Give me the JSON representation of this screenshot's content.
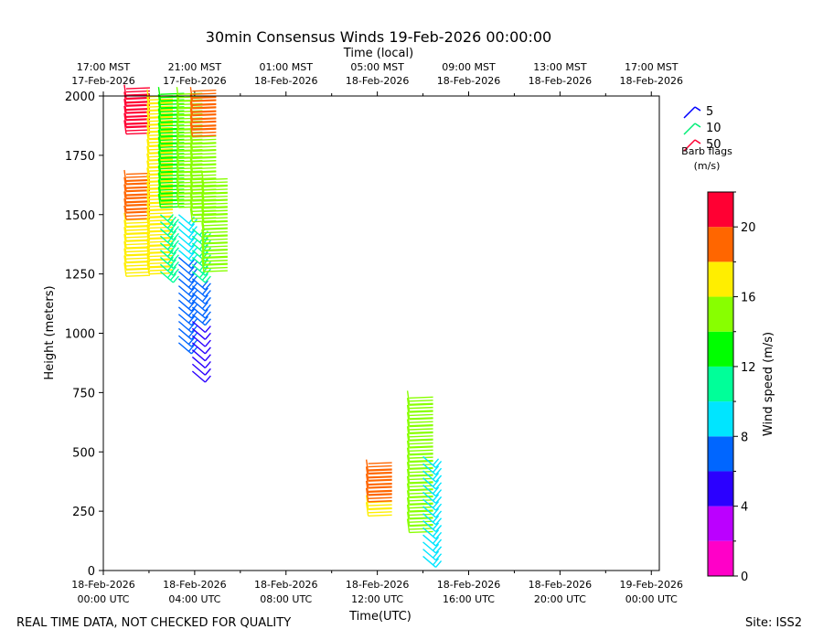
{
  "chart_data": {
    "type": "wind-barb-profile",
    "title": "30min Consensus Winds 19-Feb-2026 00:00:00",
    "top_axis_label": "Time (local)",
    "top_ticks": [
      {
        "hour": 0,
        "line1": "17:00 MST",
        "line2": "17-Feb-2026"
      },
      {
        "hour": 4,
        "line1": "21:00 MST",
        "line2": "17-Feb-2026"
      },
      {
        "hour": 8,
        "line1": "01:00 MST",
        "line2": "18-Feb-2026"
      },
      {
        "hour": 12,
        "line1": "05:00 MST",
        "line2": "18-Feb-2026"
      },
      {
        "hour": 16,
        "line1": "09:00 MST",
        "line2": "18-Feb-2026"
      },
      {
        "hour": 20,
        "line1": "13:00 MST",
        "line2": "18-Feb-2026"
      },
      {
        "hour": 24,
        "line1": "17:00 MST",
        "line2": "18-Feb-2026"
      }
    ],
    "xlabel": "Time(UTC)",
    "x_ticks": [
      {
        "hour": 0,
        "line1": "18-Feb-2026",
        "line2": "00:00 UTC"
      },
      {
        "hour": 4,
        "line1": "18-Feb-2026",
        "line2": "04:00 UTC"
      },
      {
        "hour": 8,
        "line1": "18-Feb-2026",
        "line2": "08:00 UTC"
      },
      {
        "hour": 12,
        "line1": "18-Feb-2026",
        "line2": "12:00 UTC"
      },
      {
        "hour": 16,
        "line1": "18-Feb-2026",
        "line2": "16:00 UTC"
      },
      {
        "hour": 20,
        "line1": "18-Feb-2026",
        "line2": "20:00 UTC"
      },
      {
        "hour": 24,
        "line1": "19-Feb-2026",
        "line2": "00:00 UTC"
      }
    ],
    "xlim": [
      0,
      24.35
    ],
    "ylabel": "Height (meters)",
    "ylim": [
      0,
      2000
    ],
    "y_ticks": [
      0,
      250,
      500,
      750,
      1000,
      1250,
      1500,
      1750,
      2000
    ],
    "barb_legend": {
      "entries": [
        {
          "value": "5",
          "color": "#0000ff"
        },
        {
          "value": "10",
          "color": "#00ee77"
        },
        {
          "value": "50",
          "color": "#ff0033"
        }
      ],
      "caption_line1": "Barb flags",
      "caption_line2": "(m/s)"
    },
    "colorbar": {
      "label": "Wind speed (m/s)",
      "min": 0,
      "max": 22,
      "ticks": [
        0,
        4,
        8,
        12,
        16,
        20
      ],
      "colors": [
        "#ff00c8",
        "#bb00ff",
        "#2b00ff",
        "#0066ff",
        "#00e5ff",
        "#00ff99",
        "#00ff00",
        "#88ff00",
        "#ffee00",
        "#ff6600",
        "#ff0033"
      ]
    },
    "series": [
      {
        "time_hour": 1.0,
        "start_height": 1240,
        "end_height": 1990,
        "step": 30,
        "segments": [
          {
            "from": 1240,
            "to": 1450,
            "speed": 16.8
          },
          {
            "from": 1450,
            "to": 1630,
            "speed": 18.5
          },
          {
            "from": 1830,
            "to": 1990,
            "speed": 21.0
          }
        ]
      },
      {
        "time_hour": 2.0,
        "start_height": 1250,
        "end_height": 1990,
        "step": 30,
        "segments": [
          {
            "from": 1250,
            "to": 1460,
            "speed": 16.0
          },
          {
            "from": 1460,
            "to": 1990,
            "speed": 17.0
          }
        ]
      },
      {
        "time_hour": 2.5,
        "start_height": 1260,
        "end_height": 1990,
        "step": 30,
        "segments": [
          {
            "from": 1260,
            "to": 1350,
            "speed": 11.0
          },
          {
            "from": 1350,
            "to": 1520,
            "speed": 10.5
          },
          {
            "from": 1520,
            "to": 1990,
            "speed": 13.5
          }
        ]
      },
      {
        "time_hour": 3.3,
        "start_height": 960,
        "end_height": 1990,
        "step": 30,
        "segments": [
          {
            "from": 960,
            "to": 1100,
            "speed": 6.8
          },
          {
            "from": 1100,
            "to": 1340,
            "speed": 7.5
          },
          {
            "from": 1340,
            "to": 1500,
            "speed": 9.0
          },
          {
            "from": 1500,
            "to": 1990,
            "speed": 14.5
          }
        ]
      },
      {
        "time_hour": 3.9,
        "start_height": 840,
        "end_height": 1990,
        "step": 30,
        "segments": [
          {
            "from": 840,
            "to": 1060,
            "speed": 5.0
          },
          {
            "from": 1060,
            "to": 1240,
            "speed": 7.0
          },
          {
            "from": 1240,
            "to": 1450,
            "speed": 11.0
          },
          {
            "from": 1450,
            "to": 1820,
            "speed": 15.0
          },
          {
            "from": 1820,
            "to": 1990,
            "speed": 19.0
          }
        ]
      },
      {
        "time_hour": 4.4,
        "start_height": 1260,
        "end_height": 1640,
        "step": 30,
        "segments": [
          {
            "from": 1260,
            "to": 1640,
            "speed": 14.5
          }
        ]
      },
      {
        "time_hour": 11.6,
        "start_height": 230,
        "end_height": 410,
        "step": 30,
        "segments": [
          {
            "from": 230,
            "to": 270,
            "speed": 17.0
          },
          {
            "from": 270,
            "to": 410,
            "speed": 19.0
          }
        ]
      },
      {
        "time_hour": 13.4,
        "start_height": 160,
        "end_height": 700,
        "step": 30,
        "segments": [
          {
            "from": 160,
            "to": 490,
            "speed": 14.0
          },
          {
            "from": 490,
            "to": 700,
            "speed": 15.5
          }
        ]
      },
      {
        "time_hour": 14.0,
        "start_height": 60,
        "end_height": 480,
        "step": 30,
        "segments": [
          {
            "from": 60,
            "to": 480,
            "speed": 9.0
          }
        ]
      }
    ]
  },
  "footer": {
    "disclaimer": "REAL TIME DATA, NOT CHECKED FOR QUALITY",
    "site": "Site: ISS2"
  }
}
